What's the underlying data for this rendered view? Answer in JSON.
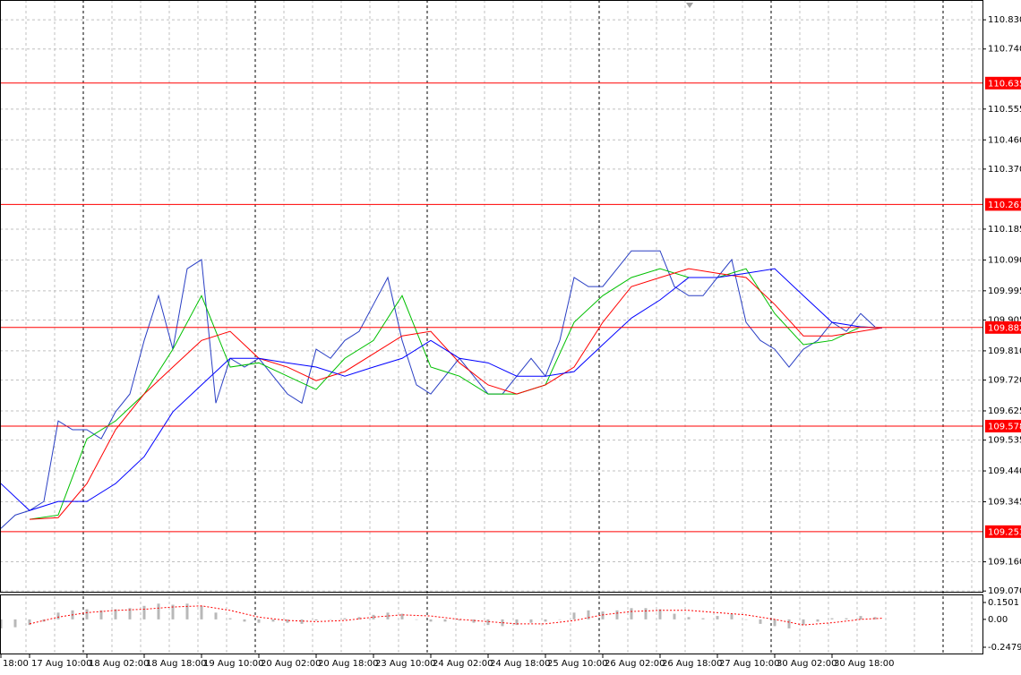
{
  "chart_data": [
    {
      "type": "line",
      "xlim": [
        -8.25,
        266.25
      ],
      "xticks": [
        {
          "value": -8,
          "label": "18:00"
        },
        {
          "value": 0,
          "label": "17 Aug 10:00"
        },
        {
          "value": 16,
          "label": "18 Aug 02:00"
        },
        {
          "value": 32,
          "label": "18 Aug 18:00"
        },
        {
          "value": 48,
          "label": "19 Aug 10:00"
        },
        {
          "value": 64,
          "label": "20 Aug 02:00"
        },
        {
          "value": 80,
          "label": "20 Aug 18:00"
        },
        {
          "value": 96,
          "label": "23 Aug 10:00"
        },
        {
          "value": 112,
          "label": "24 Aug 02:00"
        },
        {
          "value": 128,
          "label": "24 Aug 18:00"
        },
        {
          "value": 144,
          "label": "25 Aug 10:00"
        },
        {
          "value": 160,
          "label": "26 Aug 02:00"
        },
        {
          "value": 176,
          "label": "26 Aug 18:00"
        },
        {
          "value": 192,
          "label": "27 Aug 10:00"
        },
        {
          "value": 208,
          "label": "30 Aug 02:00"
        },
        {
          "value": 224,
          "label": "30 Aug 18:00"
        }
      ],
      "ylim": [
        109.065,
        110.891
      ],
      "yticks": [
        {
          "value": 110.83,
          "label": "110.830"
        },
        {
          "value": 110.74,
          "label": "110.740"
        },
        110.555,
        {
          "value": 110.46,
          "label": "110.460"
        },
        {
          "value": 110.37,
          "label": "110.370"
        },
        110.185,
        {
          "value": 110.09,
          "label": "110.090"
        },
        109.995,
        109.905,
        {
          "value": 109.81,
          "label": "109.810"
        },
        {
          "value": 109.72,
          "label": "109.720"
        },
        109.625,
        109.535,
        {
          "value": 109.44,
          "label": "109.440"
        },
        109.345,
        {
          "value": 109.16,
          "label": "109.160"
        },
        {
          "value": 109.07,
          "label": "109.070"
        }
      ],
      "grid": true,
      "hlines": [
        110.635,
        110.261,
        109.882,
        109.578,
        109.253
      ],
      "hline_color": "#ff0000",
      "series": [
        {
          "color": "#2a3fc4",
          "x": [
            -8,
            -4,
            0,
            4,
            8,
            12,
            16,
            20,
            24,
            28,
            32,
            36,
            40,
            44,
            48,
            52,
            56,
            60,
            64,
            68,
            72,
            76,
            80,
            84,
            88,
            92,
            96,
            100,
            104,
            108,
            112,
            116,
            120,
            124,
            128,
            132,
            136,
            140,
            144,
            148,
            152,
            156,
            160,
            164,
            168,
            172,
            176,
            180,
            184,
            188,
            192,
            196,
            200,
            204,
            208,
            212,
            216,
            220,
            224,
            228,
            232,
            236
          ],
          "values": [
            109.263,
            109.304,
            109.318,
            109.346,
            109.594,
            109.567,
            109.567,
            109.539,
            109.622,
            109.677,
            109.842,
            109.98,
            109.815,
            110.063,
            110.091,
            109.649,
            109.787,
            109.76,
            109.787,
            109.732,
            109.677,
            109.649,
            109.815,
            109.787,
            109.842,
            109.87,
            109.953,
            110.036,
            109.842,
            109.705,
            109.677,
            109.732,
            109.787,
            109.732,
            109.677,
            109.677,
            109.732,
            109.787,
            109.732,
            109.842,
            110.036,
            110.008,
            110.008,
            110.063,
            110.118,
            110.118,
            110.118,
            110.008,
            109.98,
            109.98,
            110.036,
            110.091,
            109.898,
            109.842,
            109.815,
            109.76,
            109.815,
            109.842,
            109.898,
            109.87,
            109.925,
            109.884
          ]
        },
        {
          "color": "#00c000",
          "x": [
            0,
            8,
            16,
            24,
            32,
            40,
            48,
            56,
            64,
            72,
            80,
            88,
            96,
            104,
            112,
            120,
            128,
            136,
            144,
            152,
            160,
            168,
            176,
            184,
            192,
            200,
            208,
            216,
            224,
            232,
            238
          ],
          "values": [
            109.291,
            109.304,
            109.539,
            109.594,
            109.677,
            109.815,
            109.98,
            109.76,
            109.773,
            109.732,
            109.691,
            109.787,
            109.842,
            109.98,
            109.76,
            109.732,
            109.677,
            109.677,
            109.705,
            109.898,
            109.98,
            110.036,
            110.063,
            110.036,
            110.036,
            110.063,
            109.925,
            109.829,
            109.842,
            109.884,
            109.881
          ]
        },
        {
          "color": "#ff0000",
          "x": [
            0,
            8,
            16,
            24,
            32,
            40,
            48,
            56,
            64,
            72,
            80,
            88,
            96,
            104,
            112,
            120,
            128,
            136,
            144,
            152,
            160,
            168,
            176,
            184,
            192,
            200,
            208,
            216,
            224,
            232,
            238
          ],
          "values": [
            109.291,
            109.296,
            109.401,
            109.567,
            109.677,
            109.76,
            109.842,
            109.87,
            109.787,
            109.76,
            109.718,
            109.746,
            109.801,
            109.856,
            109.87,
            109.773,
            109.705,
            109.677,
            109.705,
            109.76,
            109.898,
            110.008,
            110.036,
            110.063,
            110.049,
            110.036,
            109.953,
            109.856,
            109.856,
            109.87,
            109.881
          ]
        },
        {
          "color": "#0000ff",
          "x": [
            -8,
            0,
            8,
            16,
            24,
            32,
            40,
            48,
            56,
            64,
            72,
            80,
            88,
            96,
            104,
            112,
            120,
            128,
            136,
            144,
            152,
            160,
            168,
            176,
            184,
            192,
            200,
            208,
            216,
            224,
            232,
            238
          ],
          "values": [
            109.401,
            109.318,
            109.346,
            109.346,
            109.401,
            109.484,
            109.622,
            109.705,
            109.787,
            109.787,
            109.773,
            109.76,
            109.732,
            109.76,
            109.787,
            109.842,
            109.787,
            109.773,
            109.732,
            109.732,
            109.746,
            109.829,
            109.911,
            109.967,
            110.036,
            110.036,
            110.049,
            110.063,
            109.98,
            109.898,
            109.884,
            109.881
          ]
        }
      ]
    },
    {
      "type": "bar",
      "ylim": [
        -0.3116,
        0.2138
      ],
      "yticks": [
        0.1501,
        {
          "value": 0,
          "label": "0.00"
        },
        -0.2479
      ],
      "color": "#b8b8b8",
      "x": [
        -8,
        -4,
        0,
        4,
        8,
        12,
        16,
        20,
        24,
        28,
        32,
        36,
        40,
        44,
        48,
        52,
        56,
        60,
        64,
        68,
        72,
        76,
        80,
        84,
        88,
        92,
        96,
        100,
        104,
        108,
        112,
        116,
        120,
        124,
        128,
        132,
        136,
        140,
        144,
        148,
        152,
        156,
        160,
        164,
        168,
        172,
        176,
        180,
        184,
        188,
        192,
        196,
        200,
        204,
        208,
        212,
        216,
        220,
        224,
        228,
        232,
        236
      ],
      "values": [
        -0.08,
        -0.07,
        -0.05,
        -0.02,
        0.06,
        0.08,
        0.09,
        0.08,
        0.09,
        0.1,
        0.12,
        0.14,
        0.13,
        0.14,
        0.12,
        0.06,
        0.01,
        -0.02,
        -0.03,
        -0.02,
        -0.03,
        -0.04,
        -0.01,
        0,
        0.01,
        0.02,
        0.04,
        0.06,
        0.05,
        0,
        -0.02,
        -0.02,
        -0.01,
        -0.03,
        -0.05,
        -0.06,
        -0.05,
        -0.03,
        -0.02,
        0,
        0.06,
        0.08,
        0.07,
        0.08,
        0.1,
        0.1,
        0.09,
        0.05,
        0.02,
        0.01,
        0.03,
        0.05,
        0,
        -0.04,
        -0.06,
        -0.08,
        -0.05,
        -0.02,
        0.01,
        0.01,
        0.03,
        0.02
      ],
      "series": [
        {
          "color": "#ff0000",
          "x": [
            0,
            8,
            16,
            24,
            32,
            40,
            48,
            56,
            64,
            72,
            80,
            88,
            96,
            104,
            112,
            120,
            128,
            136,
            144,
            152,
            160,
            168,
            176,
            184,
            192,
            200,
            208,
            216,
            224,
            232,
            238
          ],
          "values": [
            -0.04,
            0.02,
            0.06,
            0.08,
            0.09,
            0.11,
            0.12,
            0.08,
            0.02,
            -0.01,
            -0.02,
            -0.01,
            0.02,
            0.04,
            0.03,
            0,
            -0.02,
            -0.04,
            -0.04,
            -0.01,
            0.04,
            0.07,
            0.08,
            0.08,
            0.06,
            0.04,
            0,
            -0.05,
            -0.03,
            0,
            0.01
          ]
        }
      ]
    }
  ]
}
